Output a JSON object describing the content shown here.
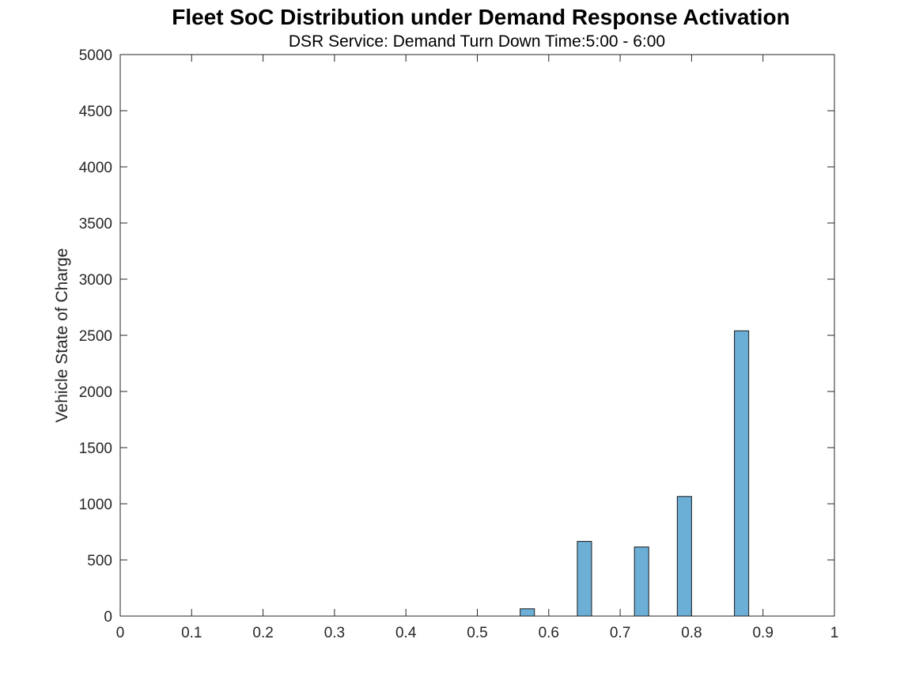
{
  "chart_data": {
    "type": "bar",
    "title": "Fleet SoC Distribution under Demand Response Activation",
    "subtitle": "DSR Service: Demand Turn Down Time:5:00 - 6:00",
    "xlabel": "",
    "ylabel": "Vehicle State of Charge",
    "xlim": [
      0,
      1
    ],
    "ylim": [
      0,
      5000
    ],
    "xticks": [
      "0",
      "0.1",
      "0.2",
      "0.3",
      "0.4",
      "0.5",
      "0.6",
      "0.7",
      "0.8",
      "0.9",
      "1"
    ],
    "yticks": [
      "0",
      "500",
      "1000",
      "1500",
      "2000",
      "2500",
      "3000",
      "3500",
      "4000",
      "4500",
      "5000"
    ],
    "bin_width": 0.02,
    "bars": [
      {
        "x": 0.57,
        "value": 65
      },
      {
        "x": 0.65,
        "value": 665
      },
      {
        "x": 0.73,
        "value": 615
      },
      {
        "x": 0.79,
        "value": 1065
      },
      {
        "x": 0.87,
        "value": 2540
      }
    ],
    "bar_color": "#6baed6",
    "edge_color": "#1a1a1a",
    "grid": false,
    "legend": false
  }
}
